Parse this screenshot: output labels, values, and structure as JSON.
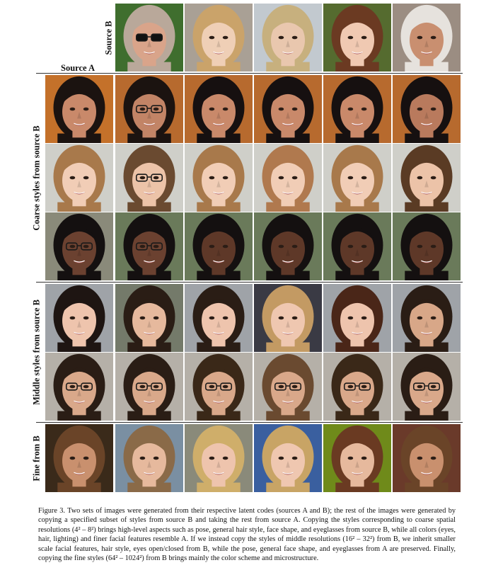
{
  "labels": {
    "source_b": "Source B",
    "source_a": "Source A",
    "coarse": "Coarse styles from source B",
    "middle": "Middle styles from source B",
    "fine": "Fine from B"
  },
  "caption": "Figure 3. Two sets of images were generated from their respective latent codes (sources A and B); the rest of the images were generated by copying a specified subset of styles from source B and taking the rest from source A. Copying the styles corresponding to coarse spatial resolutions (4² – 8²) brings high-level aspects such as pose, general hair style, face shape, and eyeglasses from source B, while all colors (eyes, hair, lighting) and finer facial features resemble A. If we instead copy the styles of middle resolutions (16² – 32²) from B, we inherit smaller scale facial features, hair style, eyes open/closed from B, while the pose, general face shape, and eyeglasses from A are preserved. Finally, copying the fine styles (64² – 1024²) from B brings mainly the color scheme and microstructure.",
  "grid": {
    "source_b": [
      {
        "bg": "#3f6e2e",
        "skin": "#d9a48a",
        "hair": "#b9a89a",
        "glasses": true,
        "sun": true
      },
      {
        "bg": "#a9a095",
        "skin": "#efcfb6",
        "hair": "#caa36a",
        "glasses": false
      },
      {
        "bg": "#c2c9cf",
        "skin": "#e9c7ae",
        "hair": "#c7b07e",
        "glasses": false
      },
      {
        "bg": "#556b2f",
        "skin": "#f0c9b2",
        "hair": "#6b3a22",
        "glasses": false
      },
      {
        "bg": "#9b8d82",
        "skin": "#c98f70",
        "hair": "#e6e2dd",
        "glasses": false
      }
    ],
    "rows": [
      {
        "section": "coarse",
        "faces": [
          {
            "bg": "#c4712a",
            "skin": "#c9896a",
            "hair": "#1b1310",
            "glasses": false
          },
          {
            "bg": "#b76a2e",
            "skin": "#c28466",
            "hair": "#1b1310",
            "glasses": true
          },
          {
            "bg": "#b76a2e",
            "skin": "#c9896a",
            "hair": "#161010",
            "glasses": false
          },
          {
            "bg": "#b76a2e",
            "skin": "#c9896a",
            "hair": "#161010",
            "glasses": false
          },
          {
            "bg": "#b76a2e",
            "skin": "#c9896a",
            "hair": "#161010",
            "glasses": false
          },
          {
            "bg": "#b76a2e",
            "skin": "#b97a5d",
            "hair": "#161010",
            "glasses": false
          }
        ]
      },
      {
        "section": "coarse",
        "faces": [
          {
            "bg": "#cfcfc9",
            "skin": "#f1cdb6",
            "hair": "#a8794b",
            "glasses": false
          },
          {
            "bg": "#cfcfc9",
            "skin": "#ecc3a8",
            "hair": "#6a4a30",
            "glasses": true
          },
          {
            "bg": "#cfcfc9",
            "skin": "#f1cdb6",
            "hair": "#a8794b",
            "glasses": false
          },
          {
            "bg": "#cfcfc9",
            "skin": "#f1cdb6",
            "hair": "#b0794e",
            "glasses": false
          },
          {
            "bg": "#cfcfc9",
            "skin": "#f1cdb6",
            "hair": "#a8794b",
            "glasses": false
          },
          {
            "bg": "#cfcfc9",
            "skin": "#ecc3a8",
            "hair": "#5a3b24",
            "glasses": false
          }
        ]
      },
      {
        "section": "coarse",
        "faces": [
          {
            "bg": "#8a8a7a",
            "skin": "#6b4130",
            "hair": "#141010",
            "glasses": true
          },
          {
            "bg": "#6a7a5a",
            "skin": "#6b4130",
            "hair": "#141010",
            "glasses": true
          },
          {
            "bg": "#6a7a5a",
            "skin": "#5e3828",
            "hair": "#141010",
            "glasses": false
          },
          {
            "bg": "#6a7a5a",
            "skin": "#5e3828",
            "hair": "#141010",
            "glasses": false
          },
          {
            "bg": "#6a7a5a",
            "skin": "#5e3828",
            "hair": "#141010",
            "glasses": false
          },
          {
            "bg": "#6a7a5a",
            "skin": "#5e3828",
            "hair": "#141010",
            "glasses": false
          }
        ]
      },
      {
        "section": "middle",
        "faces": [
          {
            "bg": "#9fa3a8",
            "skin": "#eec4ad",
            "hair": "#1e1512",
            "glasses": false
          },
          {
            "bg": "#747a6a",
            "skin": "#e6b99d",
            "hair": "#2a1d15",
            "glasses": false
          },
          {
            "bg": "#9fa3a8",
            "skin": "#eec4ad",
            "hair": "#2a1d15",
            "glasses": false
          },
          {
            "bg": "#3a3a44",
            "skin": "#efc7b0",
            "hair": "#c39a63",
            "glasses": false
          },
          {
            "bg": "#9fa3a8",
            "skin": "#eec4ad",
            "hair": "#4a2618",
            "glasses": false
          },
          {
            "bg": "#9fa3a8",
            "skin": "#d8a788",
            "hair": "#2a1d15",
            "glasses": false
          }
        ]
      },
      {
        "section": "middle",
        "faces": [
          {
            "bg": "#b5b0a8",
            "skin": "#d9a88a",
            "hair": "#2a1d15",
            "glasses": true
          },
          {
            "bg": "#b5b0a8",
            "skin": "#d9a88a",
            "hair": "#2a1d15",
            "glasses": true
          },
          {
            "bg": "#b5b0a8",
            "skin": "#d9a88a",
            "hair": "#3a2818",
            "glasses": true
          },
          {
            "bg": "#b5b0a8",
            "skin": "#d9a88a",
            "hair": "#6a4a30",
            "glasses": true
          },
          {
            "bg": "#b5b0a8",
            "skin": "#d9a88a",
            "hair": "#3a2818",
            "glasses": true
          },
          {
            "bg": "#b5b0a8",
            "skin": "#d9a88a",
            "hair": "#2a1d15",
            "glasses": true
          }
        ]
      },
      {
        "section": "fine",
        "faces": [
          {
            "bg": "#3a2a1a",
            "skin": "#c9906e",
            "hair": "#6a4428",
            "glasses": false
          },
          {
            "bg": "#7a8fa2",
            "skin": "#e6b99d",
            "hair": "#8a6a48",
            "glasses": false
          },
          {
            "bg": "#8a8a7a",
            "skin": "#eec4ad",
            "hair": "#cfae6a",
            "glasses": false
          },
          {
            "bg": "#3a5f9f",
            "skin": "#efc7b0",
            "hair": "#c8a465",
            "glasses": false
          },
          {
            "bg": "#6f8a1a",
            "skin": "#e6b99d",
            "hair": "#6a3a22",
            "glasses": false
          },
          {
            "bg": "#6a3a2a",
            "skin": "#c9906e",
            "hair": "#6a4428",
            "glasses": false
          }
        ]
      }
    ]
  }
}
